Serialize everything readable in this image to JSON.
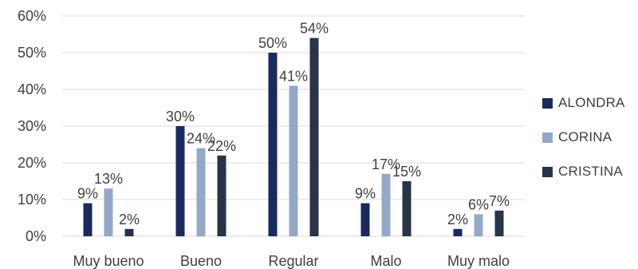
{
  "chart_data": {
    "type": "bar",
    "categories": [
      "Muy bueno",
      "Bueno",
      "Regular",
      "Malo",
      "Muy malo"
    ],
    "series": [
      {
        "name": "ALONDRA",
        "color": "#1a2a5e",
        "values": [
          9,
          30,
          50,
          9,
          2
        ],
        "labels": [
          "9%",
          "30%",
          "50%",
          "9%",
          "2%"
        ]
      },
      {
        "name": "CORINA",
        "color": "#94a8c8",
        "values": [
          13,
          24,
          41,
          17,
          6
        ],
        "labels": [
          "13%",
          "24%",
          "41%",
          "17%",
          "6%"
        ]
      },
      {
        "name": "CRISTINA",
        "color": "#283448",
        "values": [
          2,
          22,
          54,
          15,
          7
        ],
        "labels": [
          "2%",
          "22%",
          "54%",
          "15%",
          "7%"
        ]
      }
    ],
    "yticks": [
      "0%",
      "10%",
      "20%",
      "30%",
      "40%",
      "50%",
      "60%"
    ],
    "ylim": [
      0,
      60
    ],
    "grid": true,
    "legend_position": "right"
  }
}
